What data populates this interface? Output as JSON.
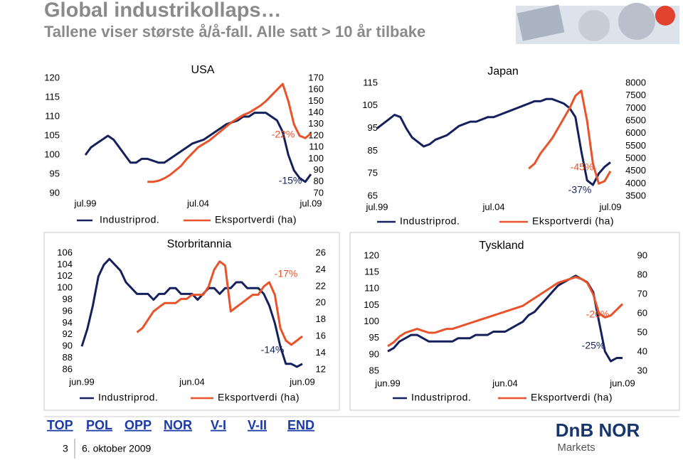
{
  "header": {
    "title": "Global industrikollaps…",
    "subtitle": "Tallene viser største å/å-fall. Alle satt > 10 år tilbake"
  },
  "chart_data": [
    {
      "type": "line",
      "title": "USA",
      "categories": [
        "jul.99",
        null,
        null,
        null,
        null,
        null,
        null,
        null,
        null,
        null,
        null,
        null,
        null,
        null,
        null,
        null,
        null,
        null,
        null,
        null,
        "jul.04",
        null,
        null,
        null,
        null,
        null,
        null,
        null,
        null,
        null,
        null,
        null,
        null,
        null,
        null,
        null,
        null,
        null,
        null,
        null,
        "jul.09"
      ],
      "series": [
        {
          "name": "Industriprod.",
          "color": "#14215c",
          "values": [
            100,
            102,
            103,
            104,
            105,
            104,
            102,
            100,
            98,
            98,
            99,
            99,
            98.5,
            98,
            98,
            99,
            100,
            101,
            102,
            103,
            103.5,
            104,
            105,
            106,
            107,
            108,
            108.5,
            109,
            110,
            110,
            111,
            111,
            111,
            110,
            109,
            106,
            100,
            96,
            94,
            93,
            95
          ]
        },
        {
          "name": "Eksportverdi (ha)",
          "color": "#e8532b",
          "axis": "y2",
          "values": [
            null,
            null,
            null,
            null,
            null,
            null,
            null,
            null,
            null,
            null,
            null,
            80,
            80,
            81,
            83,
            86,
            90,
            94,
            100,
            105,
            110,
            113,
            116,
            120,
            124,
            128,
            132,
            135,
            138,
            140,
            143,
            146,
            150,
            155,
            160,
            165,
            150,
            130,
            120,
            118,
            122
          ]
        }
      ],
      "ylim": [
        90,
        120
      ],
      "yticks": [
        90,
        95,
        100,
        105,
        110,
        115,
        120
      ],
      "y2lim": [
        70,
        170
      ],
      "y2ticks": [
        70,
        80,
        90,
        100,
        110,
        120,
        130,
        140,
        150,
        160,
        170
      ],
      "annotations": [
        "-22%",
        "-15%"
      ]
    },
    {
      "type": "line",
      "title": "Japan",
      "categories": [
        "jul.99",
        null,
        null,
        null,
        null,
        null,
        null,
        null,
        null,
        null,
        null,
        null,
        null,
        null,
        null,
        null,
        null,
        null,
        null,
        null,
        "jul.04",
        null,
        null,
        null,
        null,
        null,
        null,
        null,
        null,
        null,
        null,
        null,
        null,
        null,
        null,
        null,
        null,
        null,
        null,
        null,
        "jul.09"
      ],
      "series": [
        {
          "name": "Industriprod.",
          "color": "#14215c",
          "values": [
            95,
            97,
            99,
            101,
            100,
            95,
            91,
            89,
            87,
            88,
            90,
            91,
            92,
            94,
            96,
            97,
            98,
            98,
            99,
            100,
            100,
            101,
            102,
            103,
            104,
            105,
            106,
            107,
            107,
            108,
            108,
            107,
            106,
            104,
            100,
            85,
            72,
            70,
            75,
            78,
            80
          ]
        },
        {
          "name": "Eksportverdi (ha)",
          "color": "#e8532b",
          "axis": "y2",
          "values": [
            null,
            null,
            null,
            null,
            null,
            null,
            null,
            null,
            null,
            null,
            null,
            null,
            null,
            null,
            null,
            null,
            null,
            null,
            null,
            null,
            null,
            null,
            null,
            null,
            null,
            null,
            4600,
            4800,
            5200,
            5500,
            5800,
            6200,
            6600,
            7000,
            7500,
            7700,
            6500,
            4800,
            4000,
            4100,
            4500
          ]
        }
      ],
      "ylim": [
        65,
        115
      ],
      "yticks": [
        65,
        75,
        85,
        95,
        105,
        115
      ],
      "y2lim": [
        3500,
        8000
      ],
      "y2ticks": [
        3500,
        4000,
        4500,
        5000,
        5500,
        6000,
        6500,
        7000,
        7500,
        8000
      ],
      "annotations": [
        "-45%",
        "-37%"
      ]
    },
    {
      "type": "line",
      "title": "Storbritannia",
      "categories": [
        "jun.99",
        null,
        null,
        null,
        null,
        null,
        null,
        null,
        null,
        null,
        null,
        null,
        null,
        null,
        null,
        null,
        null,
        null,
        null,
        null,
        "jun.04",
        null,
        null,
        null,
        null,
        null,
        null,
        null,
        null,
        null,
        null,
        null,
        null,
        null,
        null,
        null,
        null,
        null,
        null,
        null,
        "jun.09"
      ],
      "series": [
        {
          "name": "Industriprod.",
          "color": "#14215c",
          "values": [
            90,
            93,
            97,
            102,
            104,
            105,
            104,
            103,
            101,
            100,
            99,
            99,
            99,
            98,
            99,
            99,
            100,
            100,
            99,
            99,
            99,
            98,
            99,
            100,
            100,
            99,
            100,
            100,
            101,
            101,
            100,
            100,
            100,
            99,
            97,
            94,
            90,
            87,
            87,
            86.5,
            87
          ]
        },
        {
          "name": "Eksportverdi (ha)",
          "color": "#e8532b",
          "axis": "y2",
          "values": [
            null,
            null,
            null,
            null,
            null,
            null,
            null,
            null,
            null,
            null,
            16.5,
            17,
            18,
            19,
            19.5,
            20,
            20,
            20,
            20.5,
            20.5,
            21,
            21,
            21,
            22,
            24,
            25,
            24.5,
            19,
            19.5,
            20,
            20.5,
            21,
            21,
            22,
            22.5,
            21,
            17,
            15.5,
            15,
            15.5,
            16
          ]
        }
      ],
      "ylim": [
        86,
        106
      ],
      "yticks": [
        86,
        88,
        90,
        92,
        94,
        96,
        98,
        100,
        102,
        104,
        106
      ],
      "y2lim": [
        12,
        26
      ],
      "y2ticks": [
        12,
        14,
        16,
        18,
        20,
        22,
        24,
        26
      ],
      "annotations": [
        "-17%",
        "-14%"
      ]
    },
    {
      "type": "line",
      "title": "Tyskland",
      "categories": [
        "jun.99",
        null,
        null,
        null,
        null,
        null,
        null,
        null,
        null,
        null,
        null,
        null,
        null,
        null,
        null,
        null,
        null,
        null,
        null,
        null,
        "jun.04",
        null,
        null,
        null,
        null,
        null,
        null,
        null,
        null,
        null,
        null,
        null,
        null,
        null,
        null,
        null,
        null,
        null,
        null,
        null,
        "jun.09"
      ],
      "series": [
        {
          "name": "Industriprod.",
          "color": "#14215c",
          "values": [
            91,
            92,
            94,
            95,
            96,
            96,
            95,
            94,
            94,
            94,
            94,
            94,
            95,
            95,
            95,
            96,
            96,
            96,
            97,
            97,
            97,
            98,
            99,
            100,
            102,
            103,
            105,
            107,
            109,
            111,
            112,
            113,
            114,
            113,
            112,
            109,
            100,
            91,
            88,
            89,
            89
          ]
        },
        {
          "name": "Eksportverdi (ha)",
          "color": "#e8532b",
          "axis": "y2",
          "values": [
            43,
            45,
            48,
            50,
            51,
            52,
            51,
            50,
            50,
            51,
            52,
            52,
            53,
            54,
            55,
            56,
            57,
            58,
            59,
            60,
            61,
            62,
            63,
            64,
            66,
            68,
            70,
            72,
            74,
            76,
            77,
            78,
            79,
            78,
            76,
            70,
            60,
            58,
            59,
            62,
            65
          ]
        }
      ],
      "ylim": [
        85,
        120
      ],
      "yticks": [
        85,
        90,
        95,
        100,
        105,
        110,
        115,
        120
      ],
      "y2lim": [
        30,
        90
      ],
      "y2ticks": [
        30,
        40,
        50,
        60,
        70,
        80,
        90
      ],
      "annotations": [
        "-26%",
        "-25%"
      ]
    }
  ],
  "footer": {
    "nav": [
      "TOP",
      "POL",
      "OPP",
      "NOR",
      "V-I",
      "V-II",
      "END"
    ],
    "page": "3",
    "date": "6. oktober 2009",
    "logo": "DnB NOR",
    "logo_sub": "Markets"
  }
}
